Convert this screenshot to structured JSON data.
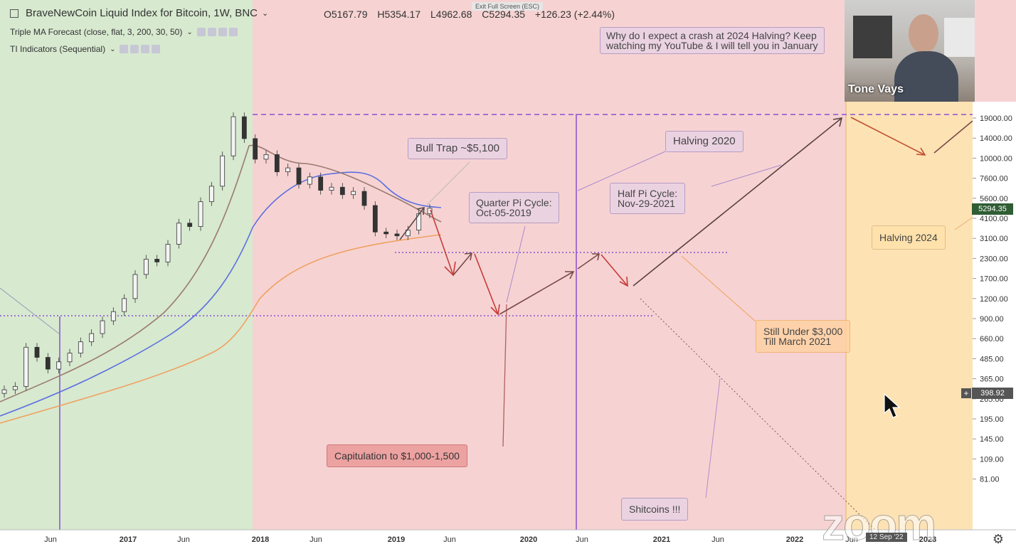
{
  "header": {
    "symbol_title": "BraveNewCoin Liquid Index for Bitcoin, 1W, BNC",
    "ohlc": {
      "open": "O5167.79",
      "high": "H5354.17",
      "low": "L4962.68",
      "close": "C5294.35",
      "change": "+126.23 (+2.44%)"
    },
    "indicator_1": "Triple MA Forecast (close, flat, 3, 200, 30, 50)",
    "indicator_2": "TI Indicators (Sequential)",
    "exit_full_screen": "Exit Full Screen (ESC)"
  },
  "annotations": {
    "top_note": "Why do I expect a crash at 2024 Halving? Keep\nwatching my YouTube & I will tell you in January",
    "bull_trap": "Bull Trap ~$5,100",
    "halving_2020": "Halving 2020",
    "quarter_pi": "Quarter Pi Cycle:\nOct-05-2019",
    "half_pi": "Half Pi Cycle:\nNov-29-2021",
    "halving_2024": "Halving 2024",
    "still_under": "Still Under $3,000\nTill March 2021",
    "capitulation": "Capitulation to $1,000-1,500",
    "shitcoins": "Shitcoins !!!"
  },
  "webcam": {
    "name": "Tone Vays"
  },
  "price_tags": {
    "current": "5294.35",
    "cursor": "398.92"
  },
  "overlay": {
    "zoom_watermark": "zoom",
    "date_badge": "12 Sep '22"
  },
  "colors": {
    "green_zone": "#d7e9cf",
    "red_zone": "#f6d3d2",
    "orange_zone": "#fde2b4",
    "ma_blue": "#5b6fe0",
    "ma_orange": "#f0a060",
    "ma_brown": "#9a7a70",
    "level_line": "#8a4fd0"
  },
  "chart_data": {
    "type": "candlestick",
    "y_axis": {
      "scale": "log",
      "tick_labels": [
        "19000.00",
        "14000.00",
        "10000.00",
        "7600.00",
        "5600.00",
        "4100.00",
        "3100.00",
        "2300.00",
        "1700.00",
        "1200.00",
        "900.00",
        "660.00",
        "485.00",
        "365.00",
        "265.00",
        "195.00",
        "145.00",
        "109.00",
        "81.00"
      ]
    },
    "x_axis": {
      "tick_labels": [
        "Jun",
        "2017",
        "Jun",
        "2018",
        "Jun",
        "2019",
        "Jun",
        "2020",
        "Jun",
        "2021",
        "Jun",
        "2022",
        "Jun",
        "2023"
      ]
    },
    "zones": [
      "green",
      "red",
      "orange"
    ],
    "close_series": [
      420,
      440,
      760,
      660,
      560,
      620,
      700,
      820,
      920,
      1100,
      1250,
      1500,
      2100,
      2600,
      2500,
      3200,
      4300,
      4100,
      5800,
      7200,
      11000,
      19000,
      14000,
      10500,
      11200,
      8800,
      9300,
      7400,
      8200,
      6800,
      7100,
      6400,
      6700,
      5500,
      3800,
      3700,
      3600,
      3900,
      4900,
      5294
    ],
    "forecast_path": [
      5294,
      2400,
      3000,
      1200,
      2300,
      3000,
      1800,
      19000
    ],
    "levels": [
      19600,
      3000,
      1180
    ],
    "current_price": "5294.35"
  }
}
